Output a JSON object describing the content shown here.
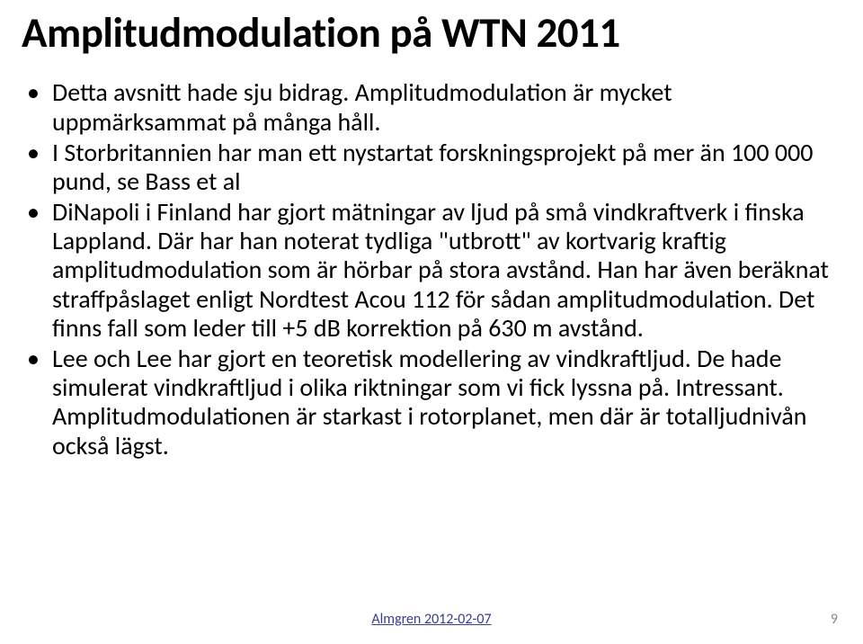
{
  "title": "Amplitudmodulation på WTN 2011",
  "title_fontsize": 47,
  "title_fontweight": 700,
  "bullets": [
    "Detta avsnitt hade sju bidrag. Amplitudmodulation är mycket uppmärksammat på många håll.",
    "I Storbritannien har man ett nystartat forskningsprojekt på mer än 100 000 pund, se Bass et al",
    "DiNapoli i Finland har gjort mätningar av ljud på små vindkraftverk i finska Lappland. Där har han noterat tydliga \"utbrott\" av kortvarig kraftig amplitudmodulation som är hörbar på stora avstånd. Han har även beräknat straffpåslaget enligt Nordtest Acou 112 för sådan amplitudmodulation. Det finns fall som leder till +5 dB korrektion på 630 m avstånd.",
    "Lee och Lee har gjort en teoretisk modellering av vindkraftljud. De hade simulerat vindkraftljud i olika riktningar som vi fick lyssna på. Intressant. Amplitudmodulationen är starkast i rotorplanet, men där är totalljudnivån också lägst."
  ],
  "bullet_fontsize": 28,
  "footer": {
    "text": "Almgren 2012-02-07",
    "fontsize": 16,
    "color": "#3b3b9a"
  },
  "page_number": {
    "value": "9",
    "fontsize": 16,
    "color": "#8a8a8a"
  },
  "colors": {
    "background": "#ffffff",
    "text": "#000000"
  }
}
